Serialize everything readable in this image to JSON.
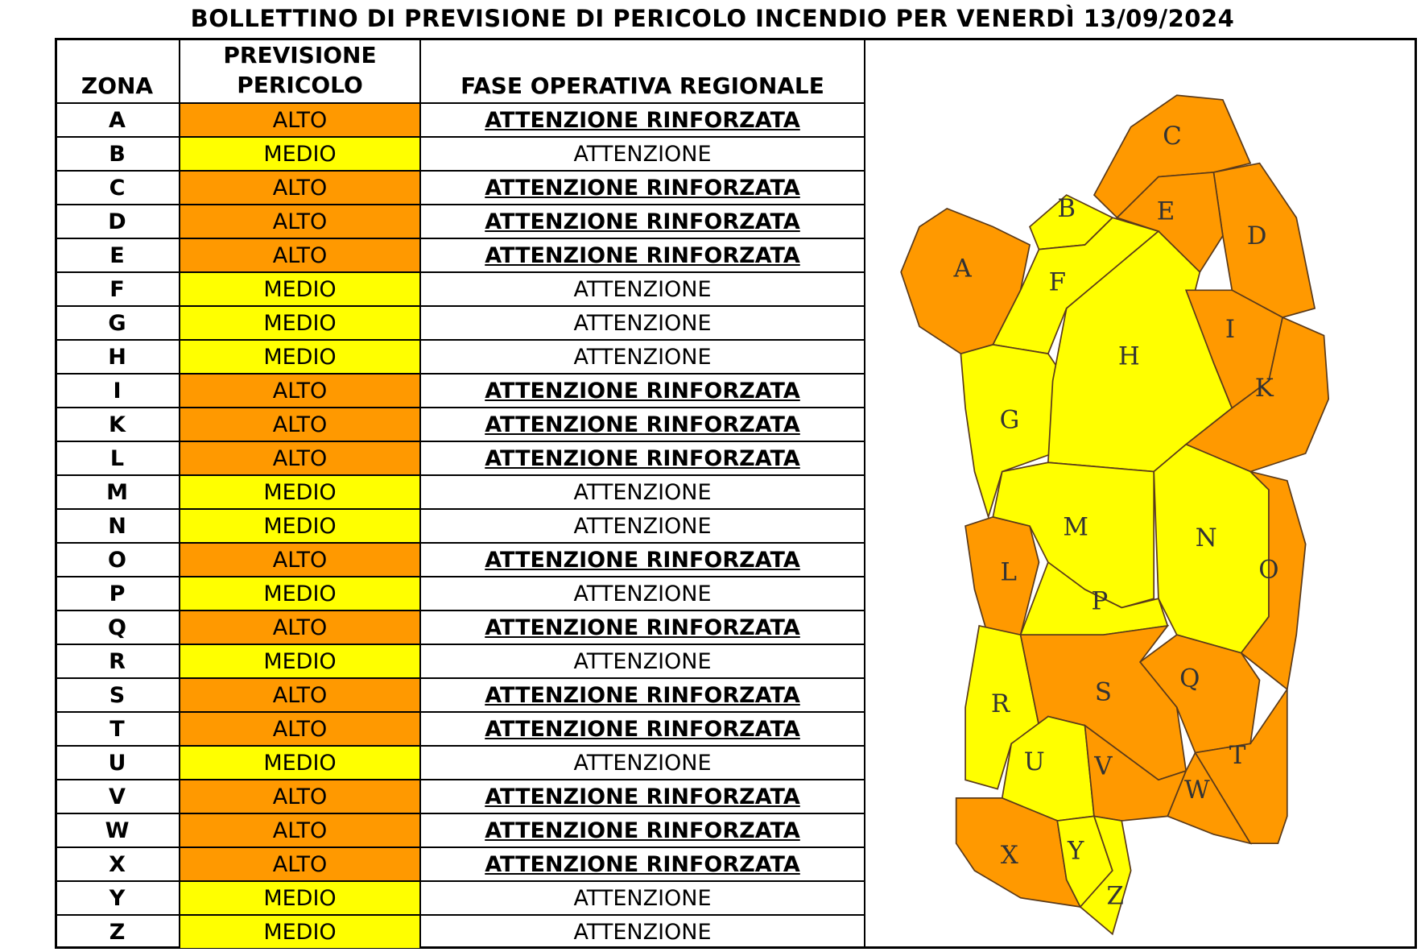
{
  "title": "BOLLETTINO DI PREVISIONE DI PERICOLO INCENDIO PER VENERDÌ 13/09/2024",
  "header": {
    "zona": "ZONA",
    "previsione": "PREVISIONE PERICOLO",
    "fase": "FASE OPERATIVA REGIONALE"
  },
  "levels": {
    "ALTO": {
      "color": "#ff9900",
      "emphasis": true
    },
    "MEDIO": {
      "color": "#ffff00",
      "emphasis": false
    }
  },
  "rows": [
    {
      "zona": "A",
      "pericolo": "ALTO",
      "fase": "ATTENZIONE RINFORZATA"
    },
    {
      "zona": "B",
      "pericolo": "MEDIO",
      "fase": "ATTENZIONE"
    },
    {
      "zona": "C",
      "pericolo": "ALTO",
      "fase": "ATTENZIONE RINFORZATA"
    },
    {
      "zona": "D",
      "pericolo": "ALTO",
      "fase": "ATTENZIONE RINFORZATA"
    },
    {
      "zona": "E",
      "pericolo": "ALTO",
      "fase": "ATTENZIONE RINFORZATA"
    },
    {
      "zona": "F",
      "pericolo": "MEDIO",
      "fase": "ATTENZIONE"
    },
    {
      "zona": "G",
      "pericolo": "MEDIO",
      "fase": "ATTENZIONE"
    },
    {
      "zona": "H",
      "pericolo": "MEDIO",
      "fase": "ATTENZIONE"
    },
    {
      "zona": "I",
      "pericolo": "ALTO",
      "fase": "ATTENZIONE RINFORZATA"
    },
    {
      "zona": "K",
      "pericolo": "ALTO",
      "fase": "ATTENZIONE RINFORZATA"
    },
    {
      "zona": "L",
      "pericolo": "ALTO",
      "fase": "ATTENZIONE RINFORZATA"
    },
    {
      "zona": "M",
      "pericolo": "MEDIO",
      "fase": "ATTENZIONE"
    },
    {
      "zona": "N",
      "pericolo": "MEDIO",
      "fase": "ATTENZIONE"
    },
    {
      "zona": "O",
      "pericolo": "ALTO",
      "fase": "ATTENZIONE RINFORZATA"
    },
    {
      "zona": "P",
      "pericolo": "MEDIO",
      "fase": "ATTENZIONE"
    },
    {
      "zona": "Q",
      "pericolo": "ALTO",
      "fase": "ATTENZIONE RINFORZATA"
    },
    {
      "zona": "R",
      "pericolo": "MEDIO",
      "fase": "ATTENZIONE"
    },
    {
      "zona": "S",
      "pericolo": "ALTO",
      "fase": "ATTENZIONE RINFORZATA"
    },
    {
      "zona": "T",
      "pericolo": "ALTO",
      "fase": "ATTENZIONE RINFORZATA"
    },
    {
      "zona": "U",
      "pericolo": "MEDIO",
      "fase": "ATTENZIONE"
    },
    {
      "zona": "V",
      "pericolo": "ALTO",
      "fase": "ATTENZIONE RINFORZATA"
    },
    {
      "zona": "W",
      "pericolo": "ALTO",
      "fase": "ATTENZIONE RINFORZATA"
    },
    {
      "zona": "X",
      "pericolo": "ALTO",
      "fase": "ATTENZIONE RINFORZATA"
    },
    {
      "zona": "Y",
      "pericolo": "MEDIO",
      "fase": "ATTENZIONE"
    },
    {
      "zona": "Z",
      "pericolo": "MEDIO",
      "fase": "ATTENZIONE"
    }
  ]
}
